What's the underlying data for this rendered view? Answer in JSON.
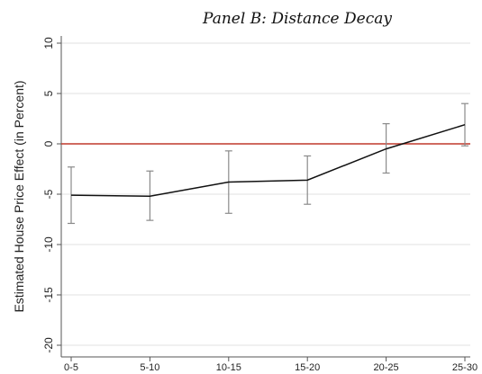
{
  "chart_data": {
    "type": "line",
    "title": "Panel B: Distance Decay",
    "xlabel": "",
    "ylabel": "Estimated House Price Effect (in Percent)",
    "categories": [
      "0-5",
      "5-10",
      "10-15",
      "15-20",
      "20-25",
      "25-30"
    ],
    "series": [
      {
        "values": [
          -5.1,
          -5.2,
          -3.8,
          -3.6,
          -0.5,
          1.9
        ],
        "ci_low": [
          -7.9,
          -7.6,
          -6.9,
          -6.0,
          -2.9,
          -0.2
        ],
        "ci_high": [
          -2.3,
          -2.7,
          -0.7,
          -1.2,
          2.0,
          4.0
        ]
      }
    ],
    "ylim": [
      -20,
      10
    ],
    "yticks": [
      10,
      5,
      0,
      -5,
      -10,
      -15,
      -20
    ],
    "reference_line": {
      "y": 0,
      "color": "#c0392b"
    },
    "grid": true
  }
}
